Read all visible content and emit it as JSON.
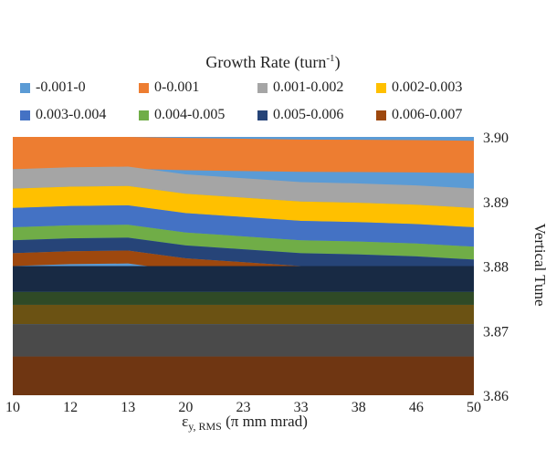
{
  "chart_data": {
    "type": "heatmap",
    "title": "Growth Rate (turn-1)",
    "title_base": "Growth Rate (turn",
    "title_sup": "-1",
    "title_end": ")",
    "xlabel": "εy, RMS (π mm mrad)",
    "xlabel_main": "ε",
    "xlabel_sub": "y, RMS",
    "xlabel_tail": " (π mm mrad)",
    "ylabel": "Vertical Tune",
    "x_categories": [
      "10",
      "12",
      "13",
      "20",
      "23",
      "33",
      "38",
      "46",
      "50"
    ],
    "y_ticks": [
      "3.86",
      "3.87",
      "3.88",
      "3.89",
      "3.90"
    ],
    "ylim": [
      3.86,
      3.9
    ],
    "legend_placement": "top",
    "legend": [
      {
        "label": "-0.001-0",
        "color": "#5b9bd5"
      },
      {
        "label": "0-0.001",
        "color": "#ed7d31"
      },
      {
        "label": "0.001-0.002",
        "color": "#a5a5a5"
      },
      {
        "label": "0.002-0.003",
        "color": "#ffc000"
      },
      {
        "label": "0.003-0.004",
        "color": "#4472c4"
      },
      {
        "label": "0.004-0.005",
        "color": "#70ad47"
      },
      {
        "label": "0.005-0.006",
        "color": "#264478"
      },
      {
        "label": "0.006-0.007",
        "color": "#9e480e"
      }
    ],
    "upper_region_bands": [
      {
        "range": "0-0.001",
        "tune_from": 3.895,
        "tune_to": 3.9
      },
      {
        "range": "0.001-0.002",
        "tune_from": 3.892,
        "tune_to": 3.895
      },
      {
        "range": "0.002-0.003",
        "tune_from": 3.889,
        "tune_to": 3.892
      },
      {
        "range": "0.003-0.004",
        "tune_from": 3.886,
        "tune_to": 3.889
      },
      {
        "range": "0.004-0.005",
        "tune_from": 3.884,
        "tune_to": 3.886
      },
      {
        "range": "0.005-0.006",
        "tune_from": 3.882,
        "tune_to": 3.884
      },
      {
        "range": "0.006-0.007",
        "tune_from": 3.88,
        "tune_to": 3.882
      }
    ],
    "lower_region_bands": [
      {
        "shade": "dark-navy",
        "tune_from": 3.876,
        "tune_to": 3.88
      },
      {
        "shade": "dark-green",
        "tune_from": 3.874,
        "tune_to": 3.876
      },
      {
        "shade": "dark-gold",
        "tune_from": 3.871,
        "tune_to": 3.874
      },
      {
        "shade": "dark-gray",
        "tune_from": 3.866,
        "tune_to": 3.871
      },
      {
        "shade": "dark-brown",
        "tune_from": 3.86,
        "tune_to": 3.866
      }
    ]
  }
}
